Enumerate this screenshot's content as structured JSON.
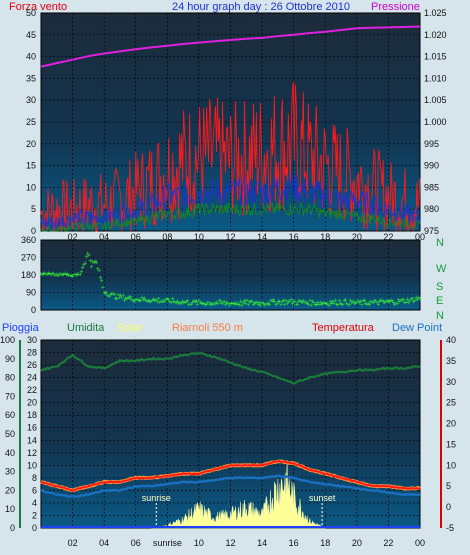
{
  "header": {
    "wind_label": "Forza vento",
    "title": "24 hour graph day : 26 Ottobre 2010",
    "pressure_label": "Pressione"
  },
  "bottom_header": {
    "rain_label": "Pioggia",
    "humidity_label": "Umidita",
    "solar_label": "Solar",
    "station_label": "Riarnoli 550 m",
    "temperature_label": "Temperatura",
    "dewpoint_label": "Dew Point"
  },
  "compass": [
    "N",
    "W",
    "S",
    "E",
    "N"
  ],
  "sun": {
    "sunrise": "sunrise",
    "sunset": "sunset"
  },
  "colors": {
    "wind_gust": "#ff1a1a",
    "wind_avg": "#2030d0",
    "wind_min": "#1a8a1a",
    "pressure": "#e020e0",
    "direction": "#33ee33",
    "humidity": "#1a7a3a",
    "solar": "#ffff99",
    "temperature": "#ff1a1a",
    "dewpoint": "#1a70c0",
    "rain": "#2040ff"
  },
  "chart_data": [
    {
      "type": "line",
      "title": "24 hour graph day : 26 Ottobre 2010",
      "x_ticks": [
        "02",
        "04",
        "06",
        "08",
        "10",
        "12",
        "14",
        "16",
        "18",
        "20",
        "22",
        "00"
      ],
      "x_range_hours": [
        0,
        24
      ],
      "left_axis": {
        "label": "Forza vento",
        "ticks": [
          0,
          5,
          10,
          15,
          20,
          25,
          30,
          35,
          40,
          45,
          50
        ],
        "range": [
          0,
          50
        ]
      },
      "right_axis": {
        "label": "Pressione",
        "ticks": [
          "975",
          "980",
          "985",
          "990",
          "995",
          "1.000",
          "1.005",
          "1.010",
          "1.015",
          "1.020",
          "1.025"
        ],
        "range": [
          975,
          1025
        ]
      },
      "series": [
        {
          "name": "Pressione",
          "x": [
            0,
            1,
            2,
            3,
            4,
            5,
            6,
            7,
            8,
            9,
            10,
            11,
            12,
            13,
            14,
            15,
            16,
            17,
            18,
            19,
            20,
            21,
            22,
            23,
            24
          ],
          "values": [
            1012.7,
            1013.5,
            1014.3,
            1015.1,
            1015.7,
            1016.2,
            1016.7,
            1017.1,
            1017.5,
            1017.9,
            1018.2,
            1018.5,
            1018.8,
            1019.1,
            1019.3,
            1019.7,
            1020.0,
            1020.4,
            1020.7,
            1021.1,
            1021.5,
            1021.6,
            1021.7,
            1021.8,
            1021.9
          ]
        },
        {
          "name": "gust",
          "x": [
            0,
            1,
            2,
            3,
            4,
            5,
            6,
            7,
            8,
            9,
            10,
            11,
            12,
            13,
            14,
            15,
            16,
            17,
            18,
            19,
            20,
            21,
            22,
            23,
            24
          ],
          "values": [
            4,
            5,
            5,
            6,
            6,
            7,
            9,
            11,
            14,
            16,
            17,
            17,
            16,
            17,
            18,
            19,
            20,
            17,
            15,
            13,
            12,
            10,
            8,
            7,
            6
          ]
        },
        {
          "name": "average",
          "x": [
            0,
            1,
            2,
            3,
            4,
            5,
            6,
            7,
            8,
            9,
            10,
            11,
            12,
            13,
            14,
            15,
            16,
            17,
            18,
            19,
            20,
            21,
            22,
            23,
            24
          ],
          "values": [
            2,
            2,
            3,
            3,
            3,
            4,
            5,
            6,
            8,
            8,
            9,
            9,
            9,
            9,
            9,
            10,
            10,
            9,
            8,
            7,
            7,
            6,
            5,
            4,
            3
          ]
        },
        {
          "name": "minimum",
          "x": [
            0,
            1,
            2,
            3,
            4,
            5,
            6,
            7,
            8,
            9,
            10,
            11,
            12,
            13,
            14,
            15,
            16,
            17,
            18,
            19,
            20,
            21,
            22,
            23,
            24
          ],
          "values": [
            0,
            0,
            1,
            1,
            1,
            2,
            2,
            3,
            4,
            4,
            5,
            5,
            5,
            5,
            5,
            5,
            5,
            5,
            4,
            4,
            3,
            3,
            2,
            2,
            1
          ]
        }
      ]
    },
    {
      "type": "scatter",
      "x_range_hours": [
        0,
        24
      ],
      "left_axis": {
        "ticks": [
          0,
          90,
          180,
          270,
          360
        ],
        "range": [
          0,
          360
        ]
      },
      "right_axis": {
        "ticks": [
          "N",
          "W",
          "S",
          "E",
          "N"
        ]
      },
      "series": [
        {
          "name": "direction",
          "x": [
            0,
            0.5,
            1,
            1.5,
            2,
            2.5,
            3,
            3.2,
            3.5,
            4,
            4.5,
            5,
            6,
            7,
            8,
            9,
            10,
            11,
            12,
            13,
            14,
            15,
            16,
            17,
            18,
            19,
            20,
            21,
            22,
            23,
            23.5,
            24
          ],
          "values": [
            190,
            190,
            185,
            190,
            180,
            190,
            300,
            240,
            250,
            100,
            80,
            70,
            60,
            55,
            50,
            45,
            40,
            40,
            38,
            40,
            40,
            45,
            45,
            42,
            40,
            45,
            40,
            42,
            45,
            50,
            55,
            65
          ]
        }
      ]
    },
    {
      "type": "line",
      "x_ticks": [
        "02",
        "04",
        "06",
        "sunrise",
        "10",
        "12",
        "14",
        "16",
        "18",
        "20",
        "22",
        "00"
      ],
      "x_range_hours": [
        0,
        24
      ],
      "rain_axis": {
        "label": "Pioggia",
        "ticks": [
          0,
          10,
          20,
          30,
          40,
          50,
          60,
          70,
          80,
          90,
          100
        ],
        "range": [
          0,
          100
        ]
      },
      "humidity_axis": {
        "label": "Umidita",
        "ticks": [
          0,
          2,
          4,
          6,
          8,
          10,
          12,
          14,
          16,
          18,
          20,
          22,
          24,
          26,
          28,
          30
        ],
        "range": [
          0,
          30
        ]
      },
      "temperature_axis": {
        "label": "Temperatura",
        "ticks": [
          -5,
          0,
          5,
          10,
          15,
          20,
          25,
          30,
          35,
          40
        ],
        "range": [
          -5,
          40
        ]
      },
      "sunrise_hour": 7.3,
      "sunset_hour": 17.8,
      "series": [
        {
          "name": "Umidita",
          "x": [
            0,
            1,
            2,
            3,
            4,
            5,
            6,
            7,
            8,
            9,
            10,
            11,
            12,
            13,
            14,
            15,
            16,
            17,
            18,
            19,
            20,
            21,
            22,
            23,
            24
          ],
          "values": [
            84,
            86,
            92,
            86,
            85,
            89,
            89,
            90,
            90,
            92,
            93,
            91,
            88,
            85,
            83,
            80,
            77,
            80,
            82,
            83,
            84,
            84,
            85,
            85,
            86
          ]
        },
        {
          "name": "Temperatura",
          "x": [
            0,
            1,
            2,
            3,
            4,
            5,
            6,
            7,
            8,
            9,
            10,
            11,
            12,
            13,
            14,
            15,
            16,
            17,
            18,
            19,
            20,
            21,
            22,
            23,
            24
          ],
          "values": [
            6,
            5,
            4,
            5,
            6,
            6,
            7,
            7,
            7.5,
            8,
            8,
            9,
            10,
            10,
            10,
            11,
            10.5,
            9,
            8,
            7,
            6,
            5,
            5,
            4.5,
            4.5
          ]
        },
        {
          "name": "Dew Point",
          "x": [
            0,
            1,
            2,
            3,
            4,
            5,
            6,
            7,
            8,
            9,
            10,
            11,
            12,
            13,
            14,
            15,
            16,
            17,
            18,
            19,
            20,
            21,
            22,
            23,
            24
          ],
          "values": [
            4,
            3,
            2.5,
            3,
            4,
            4,
            5,
            5,
            5.5,
            6,
            6,
            6.5,
            7,
            7,
            7,
            7.5,
            7,
            6,
            5.5,
            5,
            4.5,
            4,
            3.5,
            3,
            3
          ]
        },
        {
          "name": "Solar",
          "x": [
            7,
            8,
            9,
            10,
            11,
            12,
            13,
            14,
            15,
            15.5,
            16,
            17,
            18
          ],
          "values": [
            0,
            0.8,
            2.5,
            5.5,
            3,
            4,
            6,
            4,
            12,
            14,
            9,
            2,
            0
          ]
        },
        {
          "name": "Pioggia",
          "x": [
            0,
            24
          ],
          "values": [
            0,
            0
          ]
        }
      ]
    }
  ]
}
